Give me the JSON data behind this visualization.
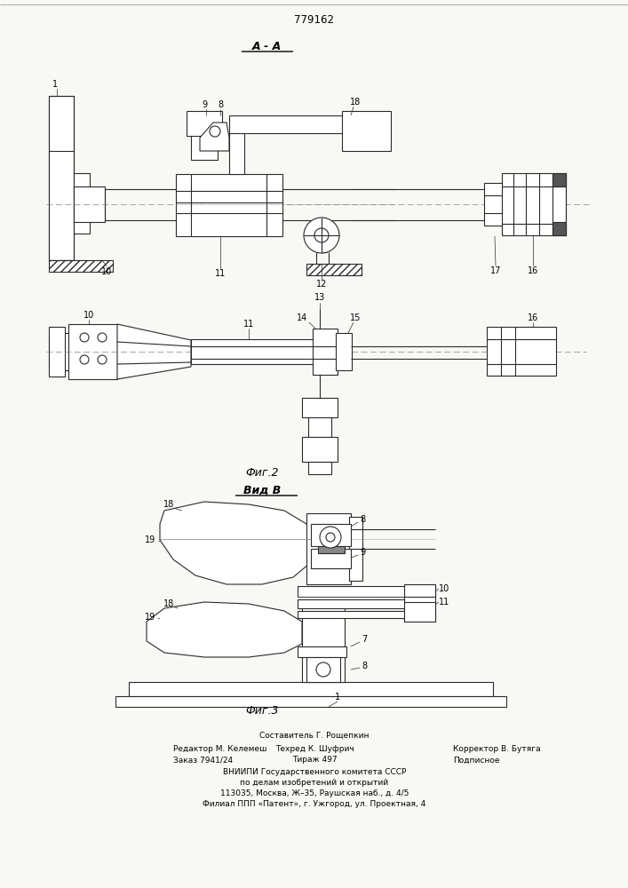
{
  "patent_number": "779162",
  "section_A_label": "A - A",
  "fig2_label": "Фиг.2",
  "fig3_label": "Фиг.3",
  "view_B_label": "Вид В",
  "footer_line1": "Составитель Г. Рощепкин",
  "footer_line2_left": "Редактор М. Келемеш",
  "footer_line2_mid": "Техред К. Шуфрич",
  "footer_line2_right": "Корректор В. Бутяга",
  "footer_line3_left": "Заказ 7941/24",
  "footer_line3_mid": "Тираж 497",
  "footer_line3_right": "Подписное",
  "footer_line4": "ВНИИПИ Государственного комитета СССР",
  "footer_line5": "по делам изобретений и открытий",
  "footer_line6": "113035, Москва, Ж–35, Раушская наб., д. 4/5",
  "footer_line7": "Филиал ППП «Патент», г. Ужгород, ул. Проектная, 4",
  "bg_color": "#f8f8f5",
  "line_color": "#2a2a2a"
}
